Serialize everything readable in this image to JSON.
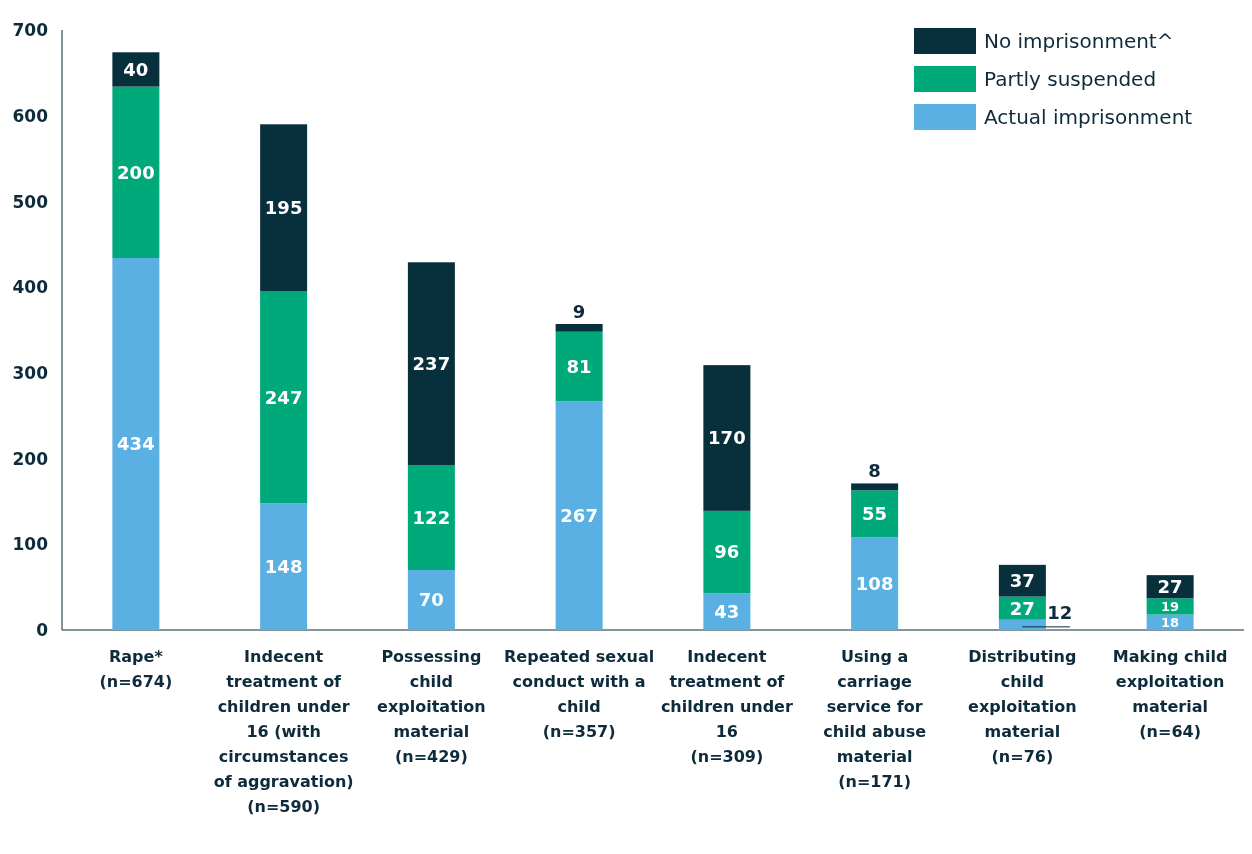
{
  "chart_data": {
    "type": "bar",
    "stacked": true,
    "categories": [
      "Rape* (n=674)",
      "Indecent treatment of children under 16 (with circumstances of aggravation) (n=590)",
      "Possessing child exploitation material (n=429)",
      "Repeated sexual conduct with a child (n=357)",
      "Indecent treatment of children under 16 (n=309)",
      "Using a carriage service for child abuse material (n=171)",
      "Distributing child exploitation material (n=76)",
      "Making child exploitation material (n=64)"
    ],
    "series": [
      {
        "name": "Actual imprisonment",
        "color": "#5aafe3",
        "values": [
          434,
          148,
          70,
          267,
          43,
          108,
          12,
          18
        ]
      },
      {
        "name": "Partly suspended",
        "color": "#00a97a",
        "values": [
          200,
          247,
          122,
          81,
          96,
          55,
          27,
          19
        ]
      },
      {
        "name": "No imprisonment^",
        "color": "#082f3c",
        "values": [
          40,
          195,
          237,
          9,
          170,
          8,
          37,
          27
        ]
      }
    ],
    "ylim": [
      0,
      700
    ],
    "yticks": [
      0,
      100,
      200,
      300,
      400,
      500,
      600,
      700
    ],
    "data_labels": true,
    "legend": "top right"
  }
}
